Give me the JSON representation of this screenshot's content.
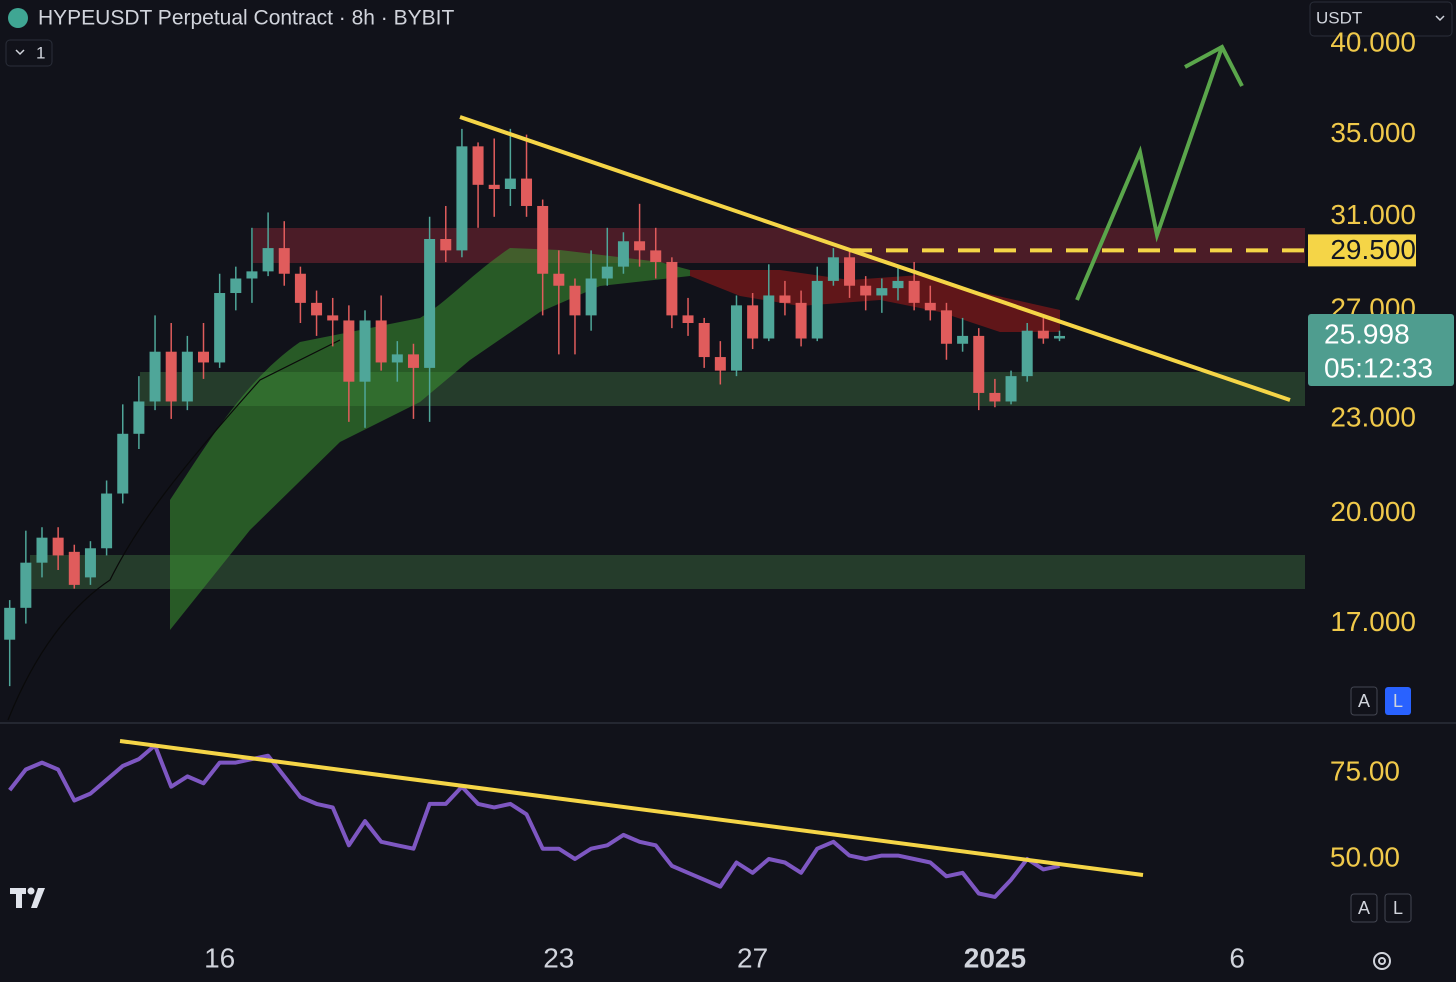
{
  "chart_data": [
    {
      "type": "candlestick",
      "title": "HYPEUSDT Perpetual Contract · 8h · BYBIT",
      "log_scale": true,
      "up_color": "#4fa699",
      "down_color": "#e05c5c",
      "categories": [
        null,
        null,
        null,
        null,
        null,
        null,
        null,
        null,
        null,
        null,
        null,
        null,
        null,
        null,
        null,
        null,
        null,
        null,
        null,
        null,
        null,
        null,
        null,
        null,
        null,
        null,
        null,
        null,
        null,
        null,
        null,
        null,
        null,
        null,
        null,
        null,
        null,
        null,
        null,
        null,
        null,
        null,
        null,
        null,
        null,
        null,
        null,
        null,
        null,
        null,
        null,
        null,
        null,
        null,
        null,
        null,
        null,
        null,
        null,
        null,
        null,
        null,
        null,
        null,
        null,
        null
      ],
      "open": [
        16.6,
        17.4,
        18.6,
        19.3,
        18.9,
        18.2,
        19.0,
        20.6,
        22.5,
        23.6,
        25.4,
        23.6,
        25.4,
        25.0,
        27.7,
        28.3,
        28.6,
        29.6,
        28.5,
        27.3,
        26.8,
        26.6,
        24.3,
        26.6,
        25.0,
        25.3,
        24.8,
        30.0,
        29.5,
        34.4,
        32.5,
        32.3,
        32.8,
        31.5,
        28.5,
        28.0,
        26.8,
        28.3,
        28.8,
        29.9,
        29.5,
        29.0,
        26.8,
        26.5,
        25.2,
        24.7,
        27.2,
        25.9,
        27.6,
        27.3,
        25.9,
        28.2,
        29.2,
        28.0,
        27.6,
        27.9,
        28.2,
        27.3,
        27.0,
        25.7,
        26.0,
        23.9,
        23.6,
        24.5,
        26.2,
        25.9
      ],
      "high": [
        17.6,
        19.5,
        19.6,
        19.6,
        19.1,
        19.2,
        21.0,
        23.5,
        24.5,
        26.8,
        26.5,
        26.0,
        26.5,
        28.5,
        28.8,
        30.5,
        31.2,
        30.8,
        28.8,
        27.8,
        27.5,
        27.2,
        27.0,
        27.6,
        25.8,
        25.7,
        31.0,
        31.5,
        35.3,
        34.6,
        34.8,
        35.3,
        35.0,
        31.8,
        29.5,
        28.3,
        29.5,
        30.5,
        30.3,
        31.6,
        30.5,
        29.2,
        27.5,
        26.7,
        25.8,
        27.6,
        27.7,
        28.9,
        28.2,
        27.8,
        28.8,
        29.6,
        29.5,
        28.4,
        28.3,
        28.8,
        29.0,
        28.0,
        27.3,
        26.7,
        26.3,
        24.4,
        24.7,
        26.5,
        26.7,
        26.2
      ],
      "low": [
        15.5,
        17.0,
        18.2,
        18.4,
        17.9,
        18.0,
        18.8,
        20.3,
        22.0,
        23.3,
        23.0,
        23.3,
        24.4,
        24.8,
        27.0,
        27.3,
        28.4,
        28.0,
        26.5,
        26.0,
        25.6,
        22.9,
        22.7,
        24.7,
        24.3,
        23.0,
        22.9,
        29.0,
        29.2,
        30.5,
        31.0,
        31.5,
        31.0,
        26.8,
        25.3,
        25.3,
        26.2,
        28.0,
        28.5,
        28.8,
        28.3,
        26.3,
        26.0,
        24.8,
        24.2,
        24.5,
        25.5,
        25.8,
        26.8,
        25.6,
        25.8,
        28.0,
        27.5,
        27.0,
        26.9,
        27.4,
        27.0,
        26.6,
        25.1,
        25.4,
        23.3,
        23.4,
        23.5,
        24.3,
        25.7,
        25.8
      ],
      "close": [
        17.4,
        18.6,
        19.3,
        18.8,
        18.0,
        19.0,
        20.6,
        22.5,
        23.6,
        25.4,
        23.6,
        25.4,
        25.0,
        27.7,
        28.3,
        28.6,
        29.6,
        28.5,
        27.3,
        26.8,
        26.6,
        24.3,
        26.6,
        25.0,
        25.3,
        24.8,
        30.0,
        29.5,
        34.4,
        32.5,
        32.3,
        32.8,
        31.5,
        28.5,
        28.0,
        26.8,
        28.3,
        28.8,
        29.9,
        29.5,
        29.0,
        26.8,
        26.5,
        25.2,
        24.7,
        27.2,
        25.9,
        27.6,
        27.3,
        25.9,
        28.2,
        29.2,
        28.0,
        27.6,
        27.9,
        28.2,
        27.3,
        27.0,
        25.7,
        26.0,
        23.9,
        23.6,
        24.5,
        26.2,
        25.9,
        25.998
      ],
      "xlim": [
        -0.6,
        80.2
      ],
      "xticks": [
        {
          "value": 13,
          "label": "16"
        },
        {
          "value": 34,
          "label": "23"
        },
        {
          "value": 46,
          "label": "27"
        },
        {
          "value": 61,
          "label": "2025"
        },
        {
          "value": 76,
          "label": "6"
        }
      ],
      "ylim": [
        14.7,
        42.7
      ],
      "yticks": [
        {
          "value": 40,
          "label": "40.000"
        },
        {
          "value": 35,
          "label": "35.000"
        },
        {
          "value": 31,
          "label": "31.000"
        },
        {
          "value": 27,
          "label": "27.000"
        },
        {
          "value": 23,
          "label": "23.000"
        },
        {
          "value": 20,
          "label": "20.000"
        },
        {
          "value": 17,
          "label": "17.000"
        }
      ],
      "price_lines": [
        {
          "value": 29.5,
          "label": "29.500"
        }
      ],
      "last_price": 25.998,
      "countdown": "05:12:33",
      "interval": "1",
      "currency": "USDT",
      "scale_buttons": [
        "A",
        "L"
      ]
    },
    {
      "type": "line",
      "color": "#7e57c2",
      "values": [
        70,
        76,
        78,
        76,
        67,
        69,
        73,
        77,
        79,
        83,
        71,
        74,
        72,
        78,
        78,
        79,
        80,
        74,
        68,
        66,
        65,
        54,
        61,
        55,
        54,
        53,
        66,
        66,
        71,
        66,
        65,
        66,
        63,
        53,
        53,
        50,
        53,
        54,
        57,
        55,
        54,
        48,
        46,
        44,
        42,
        49,
        46,
        50,
        49,
        46,
        53,
        55,
        51,
        50,
        51,
        51,
        50,
        49,
        45,
        46,
        40,
        39,
        44,
        50,
        47,
        48
      ],
      "ylim": [
        26.5,
        89.2
      ],
      "yticks": [
        {
          "value": 75,
          "label": "75.00"
        },
        {
          "value": 50,
          "label": "50.00"
        }
      ],
      "scale_buttons": [
        "A",
        "L"
      ]
    }
  ]
}
